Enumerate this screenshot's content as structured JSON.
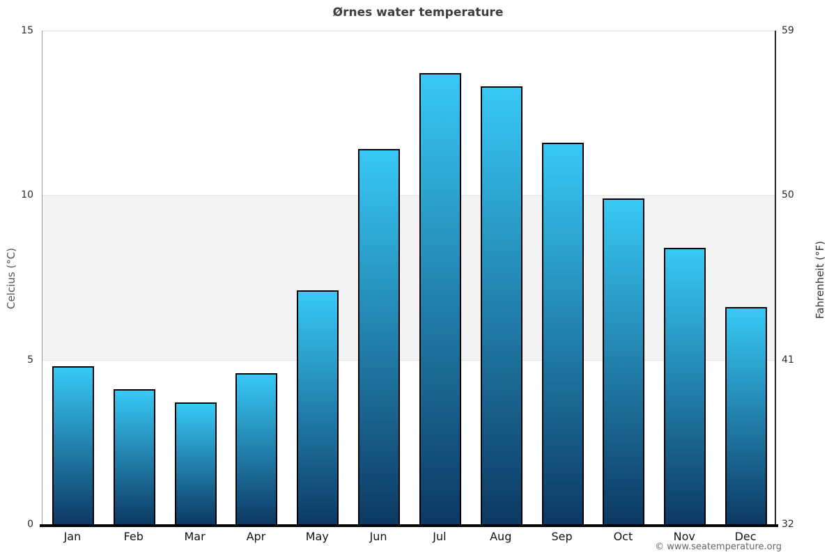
{
  "attribution": "© www.seatemperature.org",
  "chart_data": {
    "type": "bar",
    "title": "Ørnes water temperature",
    "categories": [
      "Jan",
      "Feb",
      "Mar",
      "Apr",
      "May",
      "Jun",
      "Jul",
      "Aug",
      "Sep",
      "Oct",
      "Nov",
      "Dec"
    ],
    "values": [
      4.8,
      4.1,
      3.7,
      4.6,
      7.1,
      11.4,
      13.7,
      13.3,
      11.6,
      9.9,
      8.4,
      6.6
    ],
    "ylabel_left": "Celcius (°C)",
    "ylabel_right": "Fahrenheit (°F)",
    "ylim": [
      0,
      15
    ],
    "yticks_left": [
      0,
      5,
      10,
      15
    ],
    "yticks_right": [
      32,
      41,
      50,
      59
    ],
    "grid": "horizontal",
    "gray_band_celsius": [
      5,
      10
    ],
    "legend": "none",
    "colors": {
      "bar_gradient_top": "#38c9f6",
      "bar_gradient_bottom": "#0c3963",
      "bar_border": "#000000",
      "band": "#f4f4f4",
      "gridline": "#dedede",
      "axis_bottom": "#000000",
      "title_text": "#3e3e3e"
    }
  }
}
